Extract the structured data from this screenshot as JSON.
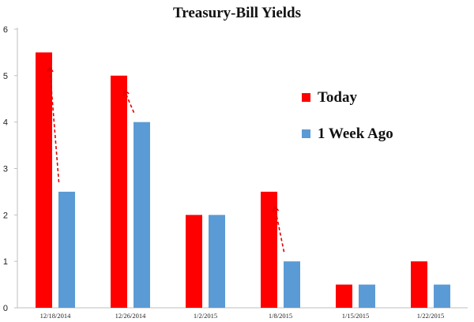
{
  "chart_data": {
    "type": "bar",
    "title": "Treasury-Bill Yields",
    "xlabel": "",
    "ylabel": "",
    "ylim": [
      0,
      6
    ],
    "yticks": [
      0,
      1,
      2,
      3,
      4,
      5,
      6
    ],
    "grid": false,
    "legend_position": "right",
    "categories": [
      "12/18/2014",
      "12/26/2014",
      "1/2/2015",
      "1/8/2015",
      "1/15/2015",
      "1/22/2015"
    ],
    "series": [
      {
        "name": "Today",
        "color": "#ff0000",
        "values": [
          5.5,
          5,
          2,
          2.5,
          0.5,
          1
        ]
      },
      {
        "name": "1 Week Ago",
        "color": "#5b9bd5",
        "values": [
          2.5,
          4,
          2,
          1,
          0.5,
          0.5
        ]
      }
    ],
    "annotations": {
      "type": "dashed-arrow",
      "color": "#e00000",
      "from_series": "1 Week Ago",
      "to_series": "Today",
      "categories": [
        "12/18/2014",
        "12/26/2014",
        "1/8/2015"
      ]
    }
  }
}
